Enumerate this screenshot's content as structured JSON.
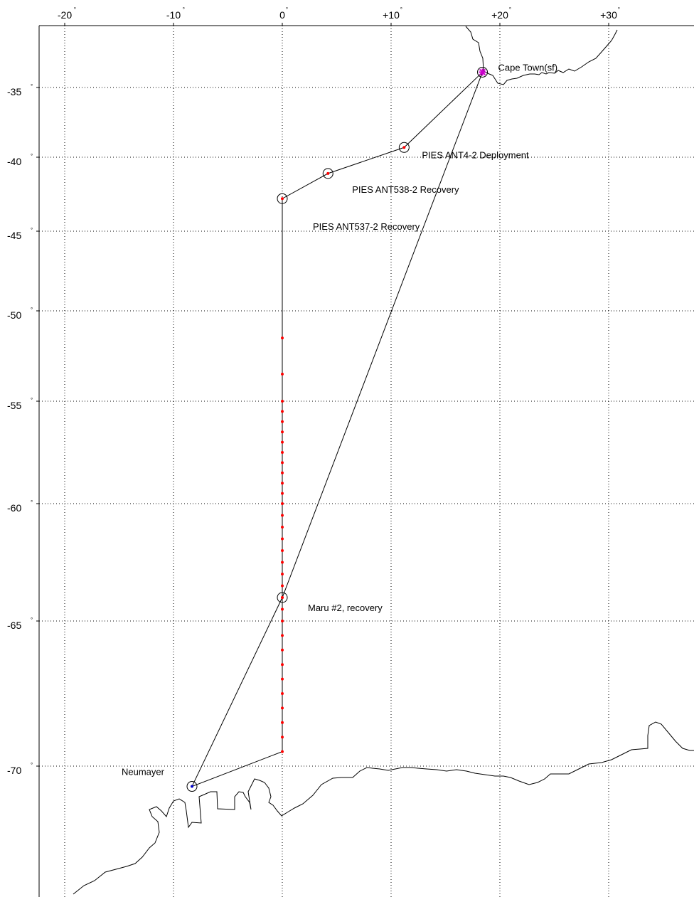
{
  "map": {
    "lon_labels": [
      "-20",
      "-10",
      "0",
      "+10",
      "+20",
      "+30"
    ],
    "lat_labels": [
      "-35",
      "-40",
      "-45",
      "-50",
      "-55",
      "-60",
      "-65",
      "-70"
    ],
    "degree_symbol": "°"
  },
  "stations": [
    {
      "name": "Cape Town(sf)",
      "lon": 18.4,
      "lat": -33.9
    },
    {
      "name": "PIES ANT4-2 Deployment",
      "lon": 11.2,
      "lat": -39.3
    },
    {
      "name": "PIES ANT538-2 Recovery",
      "lon": 4.2,
      "lat": -41.1
    },
    {
      "name": "PIES ANT537-2 Recovery",
      "lon": 0.0,
      "lat": -42.8
    },
    {
      "name": "Maru #2, recovery",
      "lon": 0.0,
      "lat": -64.0
    },
    {
      "name": "Neumayer",
      "lon": -8.3,
      "lat": -70.7
    }
  ],
  "route": [
    {
      "lon": 18.4,
      "lat": -33.9
    },
    {
      "lon": 11.2,
      "lat": -39.3
    },
    {
      "lon": 4.2,
      "lat": -41.1
    },
    {
      "lon": 0.0,
      "lat": -42.8
    },
    {
      "lon": 0.0,
      "lat": -69.5
    },
    {
      "lon": -8.3,
      "lat": -70.7
    },
    {
      "lon": 0.0,
      "lat": -64.0
    },
    {
      "lon": 18.4,
      "lat": -33.9
    }
  ],
  "ctd_stations_lat": [
    -51.5,
    -53.5,
    -55,
    -55.5,
    -56,
    -56.5,
    -57,
    -57.5,
    -58,
    -58.5,
    -59,
    -59.5,
    -60,
    -60.5,
    -61,
    -61.5,
    -62,
    -62.5,
    -63,
    -63.5,
    -64,
    -64.5,
    -65,
    -65.5,
    -66,
    -66.5,
    -67,
    -67.5,
    -68,
    -68.5,
    -69,
    -69.5
  ],
  "colors": {
    "route": "#000000",
    "ctd": "#ff0000",
    "start_marker": "#cc00cc",
    "end_marker": "#0000cc"
  }
}
